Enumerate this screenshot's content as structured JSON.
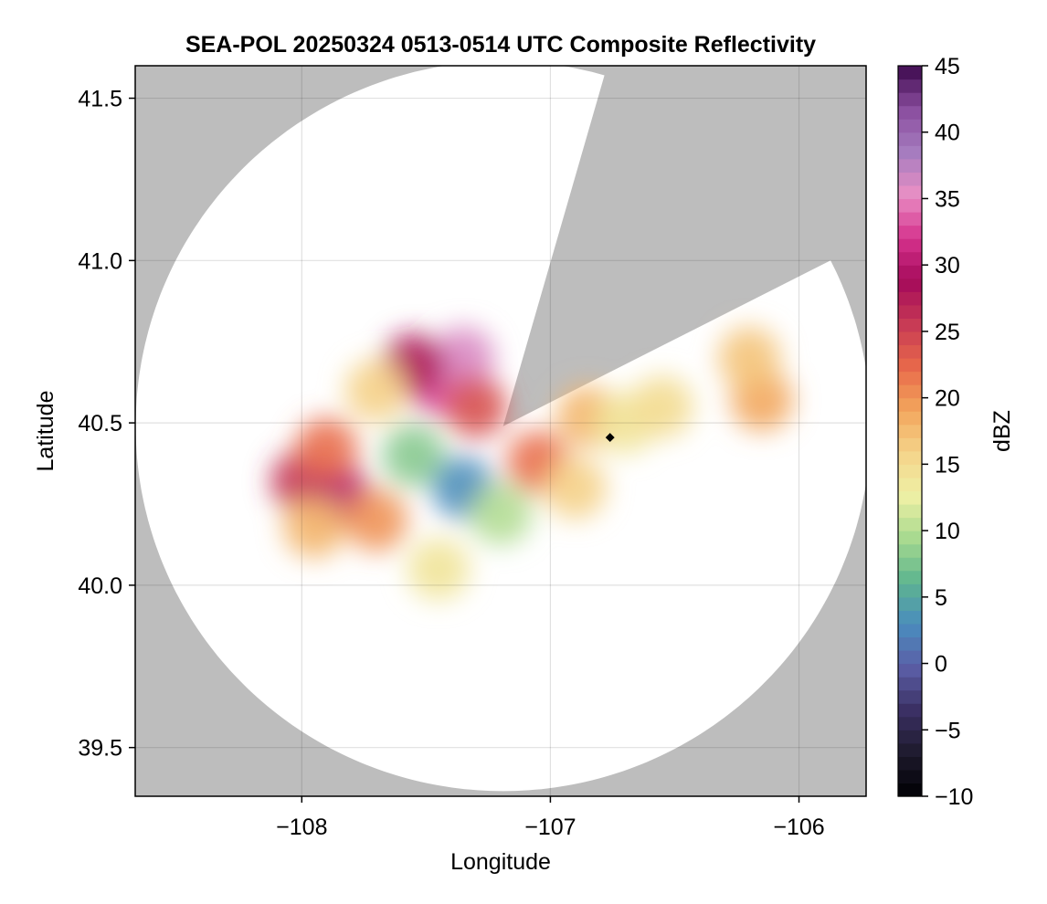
{
  "chart_data": {
    "type": "heatmap",
    "title": "SEA-POL 20250324 0513-0514 UTC Composite Reflectivity",
    "xlabel": "Longitude",
    "ylabel": "Latitude",
    "xlim": [
      -108.67,
      -105.73
    ],
    "ylim": [
      39.35,
      41.6
    ],
    "x_ticks": [
      -108,
      -107,
      -106
    ],
    "x_tick_labels": [
      "−108",
      "−107",
      "−106"
    ],
    "y_ticks": [
      39.5,
      40.0,
      40.5,
      41.0,
      41.5
    ],
    "y_tick_labels": [
      "39.5",
      "40.0",
      "40.5",
      "41.0",
      "41.5"
    ],
    "grid": true,
    "background_color": "#bdbdbd",
    "radar": {
      "center_lon": -107.19,
      "center_lat": 40.49,
      "max_range_km": 125,
      "blocked_sectors_deg": [
        [
          16,
          63
        ]
      ],
      "marker": {
        "lon": -106.76,
        "lat": 40.455,
        "color": "#000000"
      }
    },
    "echoes": [
      {
        "lon": -108.0,
        "lat": 40.32,
        "value": 26
      },
      {
        "lon": -107.85,
        "lat": 40.28,
        "value": 30
      },
      {
        "lon": -107.9,
        "lat": 40.42,
        "value": 22
      },
      {
        "lon": -107.95,
        "lat": 40.18,
        "value": 18
      },
      {
        "lon": -107.7,
        "lat": 40.2,
        "value": 20
      },
      {
        "lon": -107.45,
        "lat": 40.62,
        "value": 33
      },
      {
        "lon": -107.35,
        "lat": 40.7,
        "value": 36
      },
      {
        "lon": -107.55,
        "lat": 40.68,
        "value": 28
      },
      {
        "lon": -107.3,
        "lat": 40.55,
        "value": 24
      },
      {
        "lon": -107.7,
        "lat": 40.6,
        "value": 16
      },
      {
        "lon": -107.55,
        "lat": 40.4,
        "value": 8
      },
      {
        "lon": -107.35,
        "lat": 40.3,
        "value": 3
      },
      {
        "lon": -107.2,
        "lat": 40.22,
        "value": 10
      },
      {
        "lon": -107.45,
        "lat": 40.05,
        "value": 14
      },
      {
        "lon": -107.05,
        "lat": 40.38,
        "value": 22
      },
      {
        "lon": -106.9,
        "lat": 40.3,
        "value": 16
      },
      {
        "lon": -106.85,
        "lat": 40.52,
        "value": 18
      },
      {
        "lon": -106.7,
        "lat": 40.5,
        "value": 14
      },
      {
        "lon": -106.55,
        "lat": 40.55,
        "value": 15
      },
      {
        "lon": -106.15,
        "lat": 40.57,
        "value": 19
      },
      {
        "lon": -106.2,
        "lat": 40.7,
        "value": 17
      }
    ],
    "colorbar": {
      "label": "dBZ",
      "range": [
        -10,
        45
      ],
      "ticks": [
        -10,
        -5,
        0,
        5,
        10,
        15,
        20,
        25,
        30,
        35,
        40,
        45
      ],
      "tick_labels": [
        "−10",
        "−5",
        "0",
        "5",
        "10",
        "15",
        "20",
        "25",
        "30",
        "35",
        "40",
        "45"
      ],
      "levels": 55,
      "colors": [
        "#000004",
        "#1e1a2c",
        "#3b3063",
        "#5b5ea6",
        "#4a8cbe",
        "#5eb58f",
        "#a7d98f",
        "#eef0a5",
        "#f5d48a",
        "#f2a55c",
        "#e8684a",
        "#c73a55",
        "#a50a5a",
        "#d6338e",
        "#e88fc4",
        "#a57cbf",
        "#8a4d9e",
        "#3d0a4e"
      ]
    }
  }
}
